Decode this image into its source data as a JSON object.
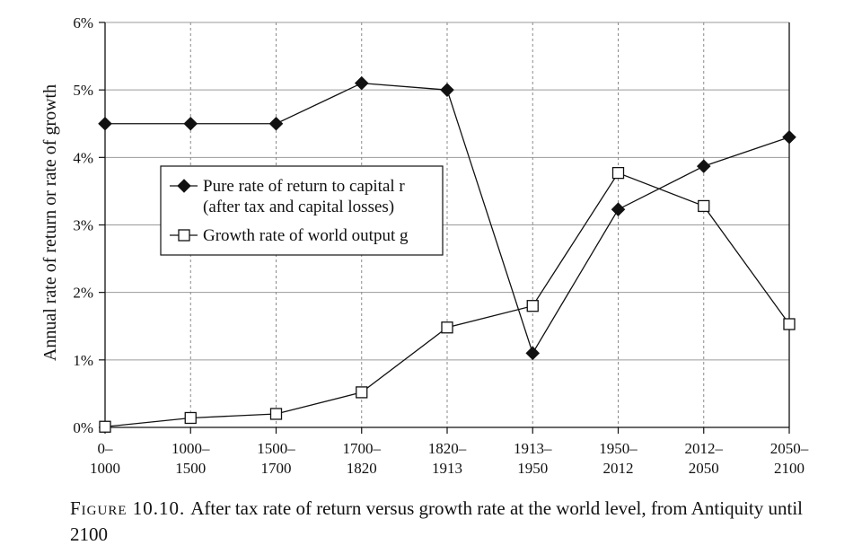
{
  "chart_data": {
    "type": "line",
    "ylabel": "Annual rate of return or rate of growth",
    "ylim": [
      0,
      6
    ],
    "yticks": [
      "0%",
      "1%",
      "2%",
      "3%",
      "4%",
      "5%",
      "6%"
    ],
    "grid": true,
    "legend_position": "left-middle",
    "categories": [
      [
        "0–",
        "1000"
      ],
      [
        "1000–",
        "1500"
      ],
      [
        "1500–",
        "1700"
      ],
      [
        "1700–",
        "1820"
      ],
      [
        "1820–",
        "1913"
      ],
      [
        "1913–",
        "1950"
      ],
      [
        "1950–",
        "2012"
      ],
      [
        "2012–",
        "2050"
      ],
      [
        "2050–",
        "2100"
      ]
    ],
    "series": [
      {
        "name": "Pure rate of return to capital r (after tax and capital losses)",
        "legend_lines": [
          "Pure rate of return to capital r",
          "(after tax and capital losses)"
        ],
        "marker": "filled-diamond",
        "values": [
          4.5,
          4.5,
          4.5,
          5.1,
          5.0,
          1.1,
          3.23,
          3.87,
          4.3
        ]
      },
      {
        "name": "Growth rate of world output g",
        "legend_lines": [
          "Growth rate of world output g"
        ],
        "marker": "open-square",
        "values": [
          0.01,
          0.14,
          0.2,
          0.52,
          1.48,
          1.8,
          3.77,
          3.28,
          1.53
        ]
      }
    ]
  },
  "caption": {
    "figure_label": "Figure 10.10.",
    "text": "After tax rate of return versus growth rate at the world level, from Antiquity until 2100"
  }
}
